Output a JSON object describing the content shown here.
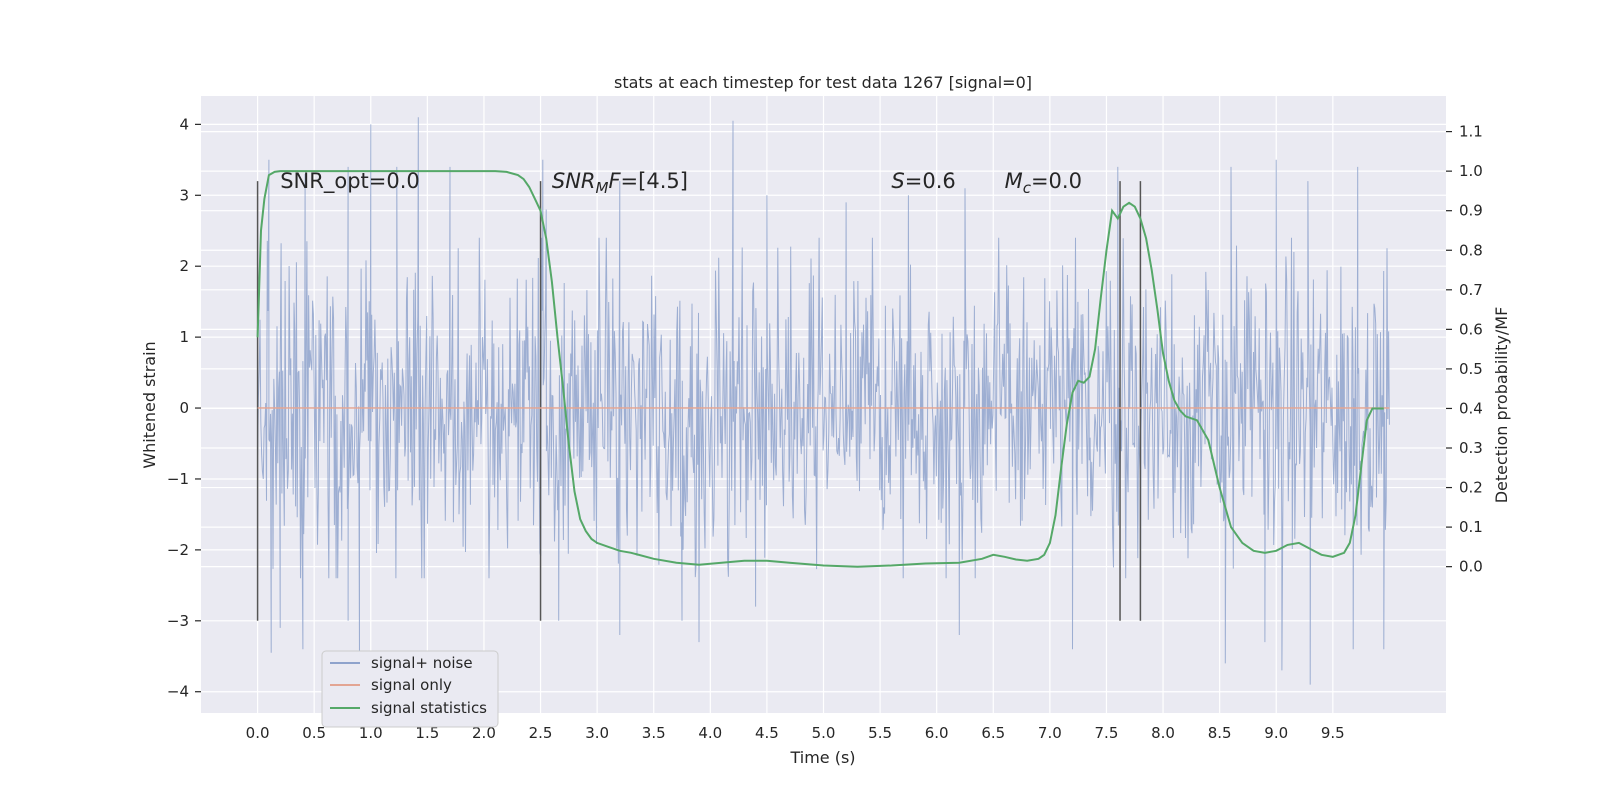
{
  "chart_data": {
    "type": "line",
    "title": "stats at each timestep for test data 1267 [signal=0]",
    "xlabel": "Time (s)",
    "ylabel": "Whitened strain",
    "y2label": "Detection probability/MF",
    "xlim": [
      -0.5,
      10.5
    ],
    "ylim": [
      -4.3,
      4.4
    ],
    "y2lim": [
      -0.37,
      1.19
    ],
    "xticks": [
      0.0,
      0.5,
      1.0,
      1.5,
      2.0,
      2.5,
      3.0,
      3.5,
      4.0,
      4.5,
      5.0,
      5.5,
      6.0,
      6.5,
      7.0,
      7.5,
      8.0,
      8.5,
      9.0,
      9.5
    ],
    "xtick_labels": [
      "0.0",
      "0.5",
      "1.0",
      "1.5",
      "2.0",
      "2.5",
      "3.0",
      "3.5",
      "4.0",
      "4.5",
      "5.0",
      "5.5",
      "6.0",
      "6.5",
      "7.0",
      "7.5",
      "8.0",
      "8.5",
      "9.0",
      "9.5"
    ],
    "yticks": [
      -4,
      -3,
      -2,
      -1,
      0,
      1,
      2,
      3,
      4
    ],
    "ytick_labels": [
      "−4",
      "−3",
      "−2",
      "−1",
      "0",
      "1",
      "2",
      "3",
      "4"
    ],
    "y2ticks": [
      0.0,
      0.1,
      0.2,
      0.3,
      0.4,
      0.5,
      0.6,
      0.7,
      0.8,
      0.9,
      1.0,
      1.1
    ],
    "y2tick_labels": [
      "0.0",
      "0.1",
      "0.2",
      "0.3",
      "0.4",
      "0.5",
      "0.6",
      "0.7",
      "0.8",
      "0.9",
      "1.0",
      "1.1"
    ],
    "grid": true,
    "legend": {
      "location": "lower-left",
      "entries": [
        {
          "label": "signal+ noise",
          "color": "#8fa3cc"
        },
        {
          "label": "signal only",
          "color": "#e3a593"
        },
        {
          "label": "signal statistics",
          "color": "#55a868"
        }
      ]
    },
    "annotations": [
      {
        "x": 0.2,
        "y": 3.1,
        "parts": [
          {
            "t": "SNR_opt=0.0",
            "style": "normal"
          }
        ]
      },
      {
        "x": 2.6,
        "y": 3.1,
        "parts": [
          {
            "t": "SNR",
            "style": "italic"
          },
          {
            "t": "M",
            "style": "italic-sub"
          },
          {
            "t": "F",
            "style": "italic"
          },
          {
            "t": "=[4.5]",
            "style": "normal"
          }
        ]
      },
      {
        "x": 5.6,
        "y": 3.1,
        "parts": [
          {
            "t": "S",
            "style": "italic"
          },
          {
            "t": "=0.6",
            "style": "normal"
          }
        ]
      },
      {
        "x": 6.6,
        "y": 3.1,
        "parts": [
          {
            "t": "M",
            "style": "italic"
          },
          {
            "t": "c",
            "style": "italic-sub"
          },
          {
            "t": "=0.0",
            "style": "normal"
          }
        ]
      }
    ],
    "vertical_markers": {
      "x": [
        0.0,
        2.5,
        7.62,
        7.8
      ],
      "y_range": [
        -3.0,
        3.2
      ],
      "color": "#555555"
    },
    "series": [
      {
        "name": "signal+ noise",
        "color": "#8fa3cc",
        "x_range": [
          0.0,
          10.0
        ],
        "samples": 1400,
        "typical_range": [
          -2.4,
          2.4
        ],
        "peaks_high": [
          [
            0.1,
            3.5
          ],
          [
            0.42,
            3.3
          ],
          [
            0.8,
            3.4
          ],
          [
            1.0,
            4.0
          ],
          [
            1.23,
            3.4
          ],
          [
            1.42,
            4.1
          ],
          [
            1.7,
            3.4
          ],
          [
            2.52,
            3.5
          ],
          [
            2.55,
            2.8
          ],
          [
            3.2,
            3.2
          ],
          [
            4.2,
            4.05
          ],
          [
            4.5,
            3.0
          ],
          [
            5.2,
            2.9
          ],
          [
            5.75,
            3.0
          ],
          [
            6.25,
            3.1
          ],
          [
            7.6,
            3.4
          ],
          [
            8.6,
            3.4
          ],
          [
            9.0,
            3.5
          ],
          [
            9.28,
            3.2
          ],
          [
            9.72,
            3.4
          ]
        ],
        "peaks_low": [
          [
            0.12,
            -3.45
          ],
          [
            0.2,
            -3.1
          ],
          [
            0.4,
            -3.4
          ],
          [
            0.8,
            -3.0
          ],
          [
            0.9,
            -3.6
          ],
          [
            2.66,
            -3.0
          ],
          [
            3.2,
            -3.2
          ],
          [
            3.75,
            -3.0
          ],
          [
            3.9,
            -3.3
          ],
          [
            4.4,
            -2.8
          ],
          [
            6.2,
            -3.2
          ],
          [
            7.2,
            -3.4
          ],
          [
            7.8,
            -3.0
          ],
          [
            8.55,
            -3.6
          ],
          [
            8.9,
            -3.3
          ],
          [
            9.05,
            -3.7
          ],
          [
            9.3,
            -3.9
          ],
          [
            9.68,
            -3.4
          ],
          [
            9.95,
            -3.4
          ]
        ],
        "axis": "left"
      },
      {
        "name": "signal only",
        "color": "#e3a593",
        "x": [
          0.0,
          10.0
        ],
        "y": [
          0.0,
          0.0
        ],
        "axis": "left"
      },
      {
        "name": "signal statistics",
        "color": "#55a868",
        "axis": "right",
        "x": [
          0.0,
          0.03,
          0.06,
          0.1,
          0.15,
          0.2,
          0.3,
          0.5,
          1.0,
          1.5,
          2.0,
          2.1,
          2.2,
          2.3,
          2.35,
          2.4,
          2.45,
          2.5,
          2.55,
          2.6,
          2.65,
          2.7,
          2.75,
          2.8,
          2.85,
          2.9,
          2.95,
          3.0,
          3.1,
          3.2,
          3.3,
          3.5,
          3.7,
          3.9,
          4.1,
          4.3,
          4.5,
          4.7,
          5.0,
          5.3,
          5.6,
          5.9,
          6.2,
          6.4,
          6.5,
          6.6,
          6.7,
          6.8,
          6.9,
          6.95,
          7.0,
          7.05,
          7.1,
          7.15,
          7.2,
          7.25,
          7.3,
          7.35,
          7.4,
          7.45,
          7.5,
          7.55,
          7.6,
          7.65,
          7.7,
          7.75,
          7.8,
          7.85,
          7.9,
          7.95,
          8.0,
          8.05,
          8.1,
          8.15,
          8.2,
          8.25,
          8.3,
          8.4,
          8.5,
          8.6,
          8.7,
          8.8,
          8.9,
          9.0,
          9.1,
          9.2,
          9.3,
          9.4,
          9.5,
          9.6,
          9.65,
          9.7,
          9.75,
          9.8,
          9.85,
          9.9,
          9.95
        ],
        "y": [
          0.58,
          0.85,
          0.93,
          0.99,
          0.998,
          1.0,
          1.0,
          1.0,
          1.0,
          1.0,
          1.0,
          1.0,
          0.998,
          0.99,
          0.98,
          0.96,
          0.93,
          0.9,
          0.83,
          0.72,
          0.58,
          0.45,
          0.31,
          0.19,
          0.12,
          0.09,
          0.07,
          0.06,
          0.05,
          0.04,
          0.035,
          0.02,
          0.01,
          0.005,
          0.01,
          0.015,
          0.015,
          0.01,
          0.003,
          0.0,
          0.003,
          0.008,
          0.01,
          0.02,
          0.03,
          0.025,
          0.018,
          0.015,
          0.02,
          0.03,
          0.06,
          0.13,
          0.25,
          0.36,
          0.44,
          0.47,
          0.465,
          0.48,
          0.55,
          0.68,
          0.8,
          0.9,
          0.88,
          0.91,
          0.92,
          0.91,
          0.88,
          0.83,
          0.75,
          0.65,
          0.54,
          0.47,
          0.42,
          0.395,
          0.38,
          0.375,
          0.37,
          0.32,
          0.2,
          0.1,
          0.06,
          0.04,
          0.035,
          0.04,
          0.055,
          0.06,
          0.045,
          0.03,
          0.025,
          0.035,
          0.06,
          0.13,
          0.25,
          0.37,
          0.4,
          0.4,
          0.4
        ]
      }
    ]
  }
}
